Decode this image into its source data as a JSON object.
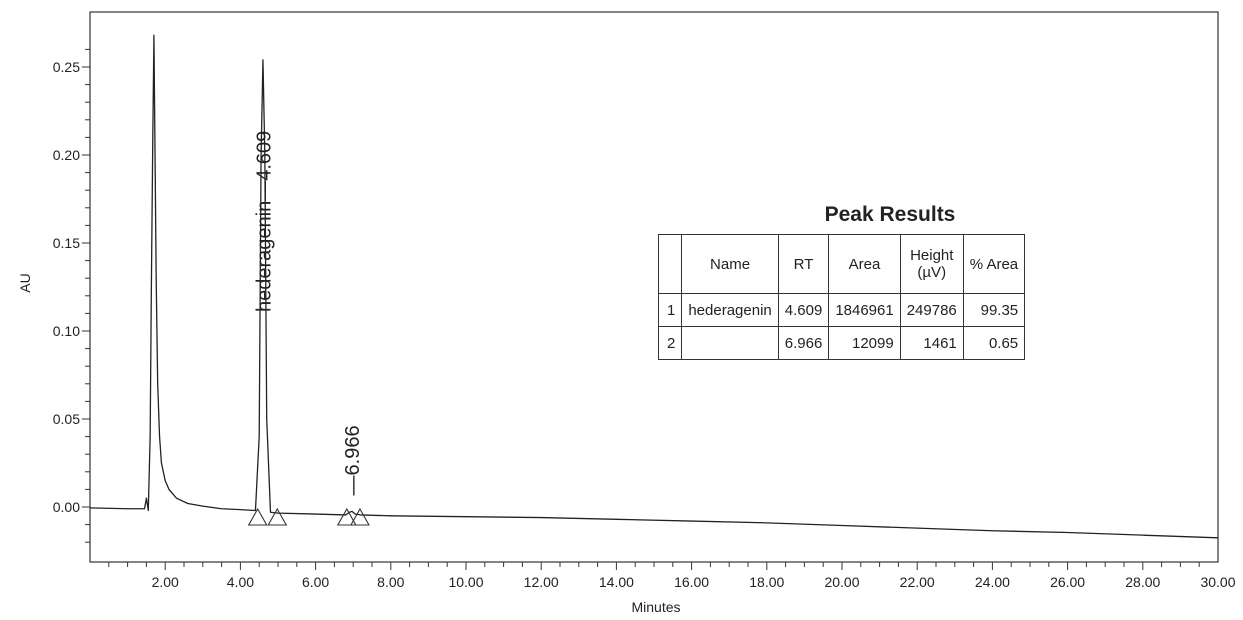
{
  "chart_data": {
    "type": "line",
    "title": "",
    "xlabel": "Minutes",
    "ylabel": "AU",
    "xlim": [
      0,
      30
    ],
    "ylim": [
      -0.025,
      0.275
    ],
    "x_ticks": [
      "2.00",
      "4.00",
      "6.00",
      "8.00",
      "10.00",
      "12.00",
      "14.00",
      "16.00",
      "18.00",
      "20.00",
      "22.00",
      "24.00",
      "26.00",
      "28.00",
      "30.00"
    ],
    "y_ticks": [
      "0.00",
      "0.05",
      "0.10",
      "0.15",
      "0.20",
      "0.25"
    ],
    "grid": false,
    "series": [
      {
        "color": "#222222",
        "x": [
          0.0,
          1.0,
          1.45,
          1.5,
          1.55,
          1.6,
          1.63,
          1.67,
          1.7,
          1.73,
          1.76,
          1.8,
          1.85,
          1.9,
          2.0,
          2.1,
          2.3,
          2.6,
          3.0,
          3.5,
          4.0,
          4.4,
          4.5,
          4.55,
          4.6,
          4.65,
          4.7,
          4.8,
          5.0,
          6.0,
          6.8,
          6.9,
          6.97,
          7.05,
          7.2,
          8.0,
          10.0,
          12.0,
          14.0,
          16.0,
          18.0,
          20.0,
          22.0,
          24.0,
          26.0,
          28.0,
          30.0
        ],
        "y": [
          -0.0005,
          -0.001,
          -0.001,
          0.005,
          -0.002,
          0.04,
          0.12,
          0.21,
          0.268,
          0.2,
          0.13,
          0.07,
          0.04,
          0.025,
          0.015,
          0.01,
          0.005,
          0.002,
          0.0005,
          -0.001,
          -0.0015,
          -0.002,
          0.04,
          0.2,
          0.254,
          0.2,
          0.05,
          -0.003,
          -0.0035,
          -0.004,
          -0.0045,
          -0.003,
          -0.0025,
          -0.004,
          -0.0045,
          -0.005,
          -0.0055,
          -0.006,
          -0.007,
          -0.008,
          -0.009,
          -0.0105,
          -0.012,
          -0.0135,
          -0.0145,
          -0.016,
          -0.0175
        ]
      }
    ],
    "peak_labels": [
      {
        "name": "hederagenin",
        "rt": "4.609",
        "x": 4.609
      },
      {
        "name": "",
        "rt": "6.966",
        "x": 6.966
      }
    ],
    "baseline_markers_x": [
      4.46,
      4.98,
      6.83,
      7.18
    ]
  },
  "table": {
    "title": "Peak Results",
    "headers": [
      "",
      "Name",
      "RT",
      "Area",
      "Height\n(µV)",
      "% Area"
    ],
    "rows": [
      [
        "1",
        "hederagenin",
        "4.609",
        "1846961",
        "249786",
        "99.35"
      ],
      [
        "2",
        "",
        "6.966",
        "12099",
        "1461",
        "0.65"
      ]
    ]
  }
}
